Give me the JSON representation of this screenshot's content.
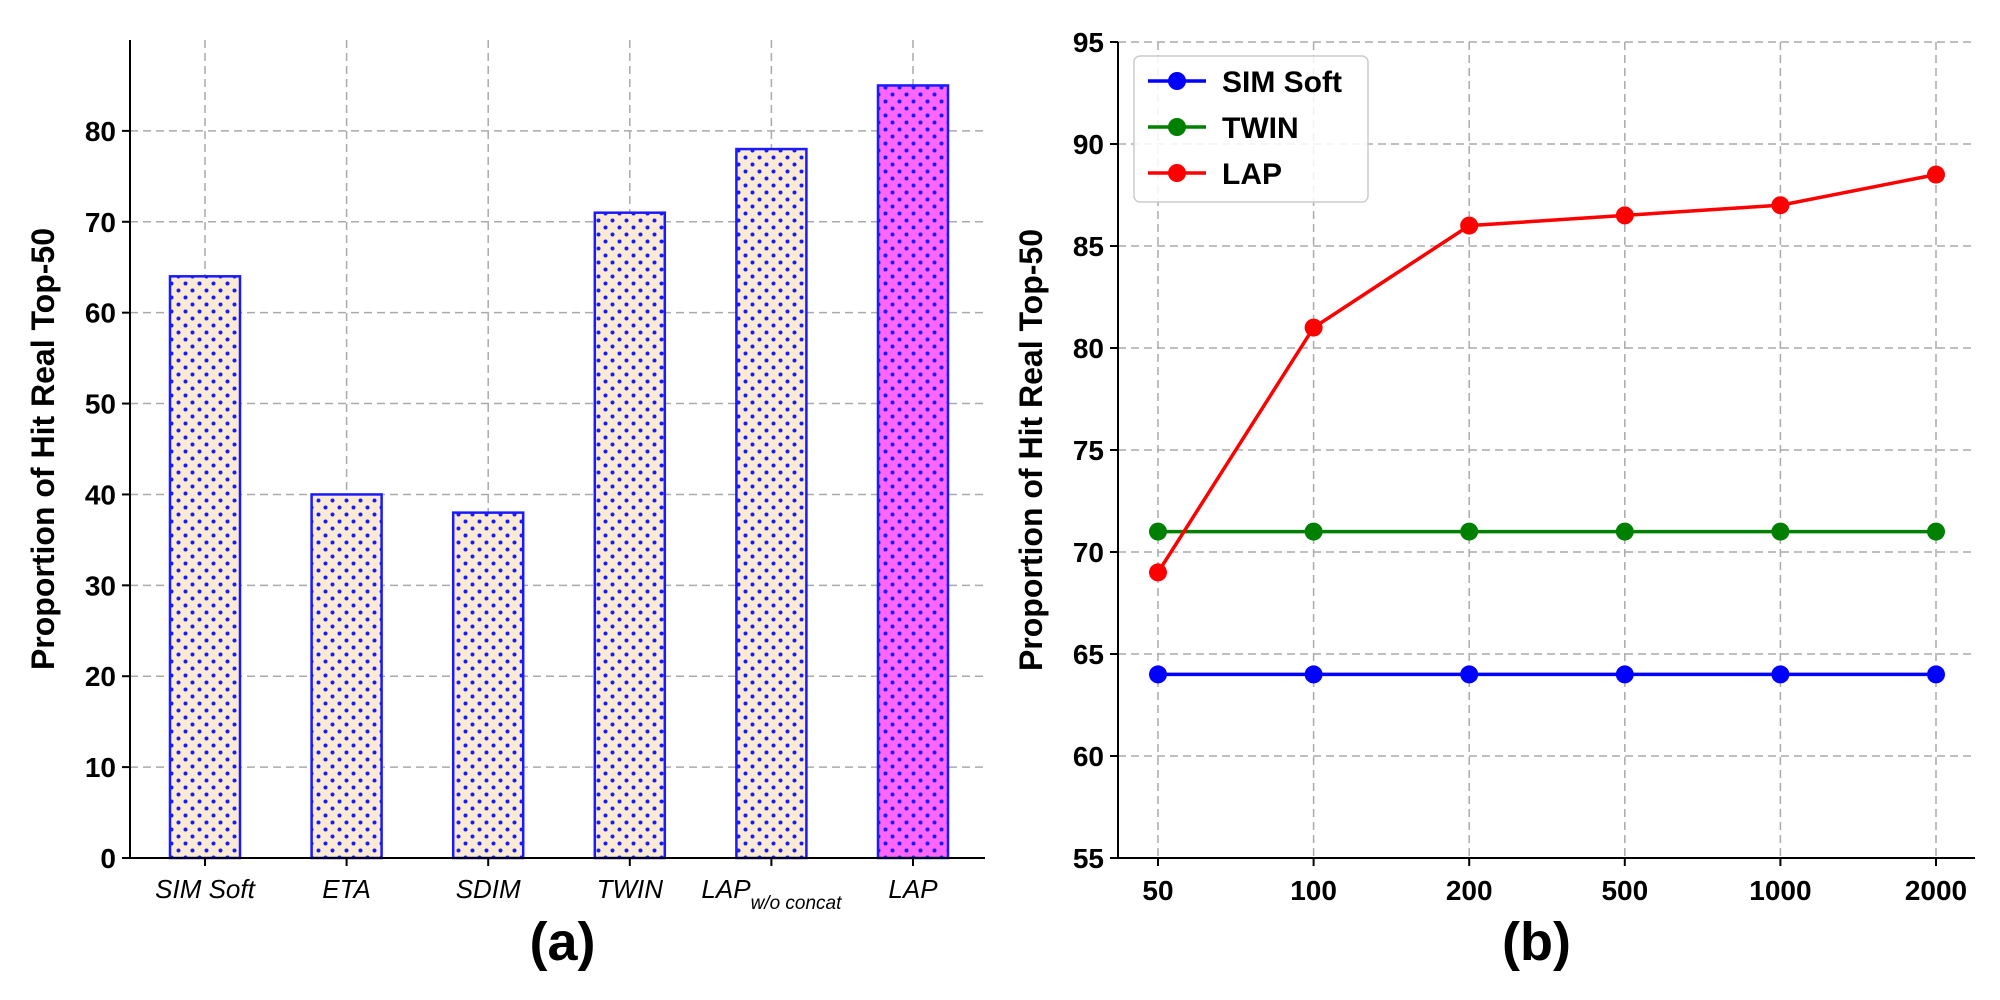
{
  "figure": {
    "panels": [
      "(a)",
      "(b)"
    ]
  },
  "chart_data": [
    {
      "type": "bar",
      "panel_label": "(a)",
      "title": "",
      "xlabel": "",
      "ylabel": "Proportion of Hit Real Top-50",
      "ylim": [
        0,
        90
      ],
      "yticks": [
        0,
        10,
        20,
        30,
        40,
        50,
        60,
        70,
        80
      ],
      "grid": true,
      "categories": [
        {
          "label": "SIM Soft",
          "sub": ""
        },
        {
          "label": "ETA",
          "sub": ""
        },
        {
          "label": "SDIM",
          "sub": ""
        },
        {
          "label": "TWIN",
          "sub": ""
        },
        {
          "label": "LAP",
          "sub": "w/o concat"
        },
        {
          "label": "LAP",
          "sub": ""
        }
      ],
      "values": [
        64,
        40,
        38,
        71,
        78,
        85
      ],
      "bar_fill": [
        "#fbebd4",
        "#fbebd4",
        "#fbebd4",
        "#fbebd4",
        "#fbebd4",
        "#ff66ff"
      ],
      "bar_edge": "#1a1aff",
      "hatch": "dots"
    },
    {
      "type": "line",
      "panel_label": "(b)",
      "title": "",
      "xlabel": "",
      "ylabel": "Proportion of Hit Real Top-50",
      "ylim": [
        55,
        95
      ],
      "yticks": [
        55,
        60,
        65,
        70,
        75,
        80,
        85,
        90,
        95
      ],
      "grid": true,
      "legend_position": "top-left",
      "x": [
        "50",
        "100",
        "200",
        "500",
        "1000",
        "2000"
      ],
      "series": [
        {
          "name": "SIM Soft",
          "color": "#0000ff",
          "values": [
            64,
            64,
            64,
            64,
            64,
            64
          ]
        },
        {
          "name": "TWIN",
          "color": "#008000",
          "values": [
            71,
            71,
            71,
            71,
            71,
            71
          ]
        },
        {
          "name": "LAP",
          "color": "#ff0000",
          "values": [
            69,
            81,
            86,
            86.5,
            87,
            88.5
          ]
        }
      ]
    }
  ]
}
